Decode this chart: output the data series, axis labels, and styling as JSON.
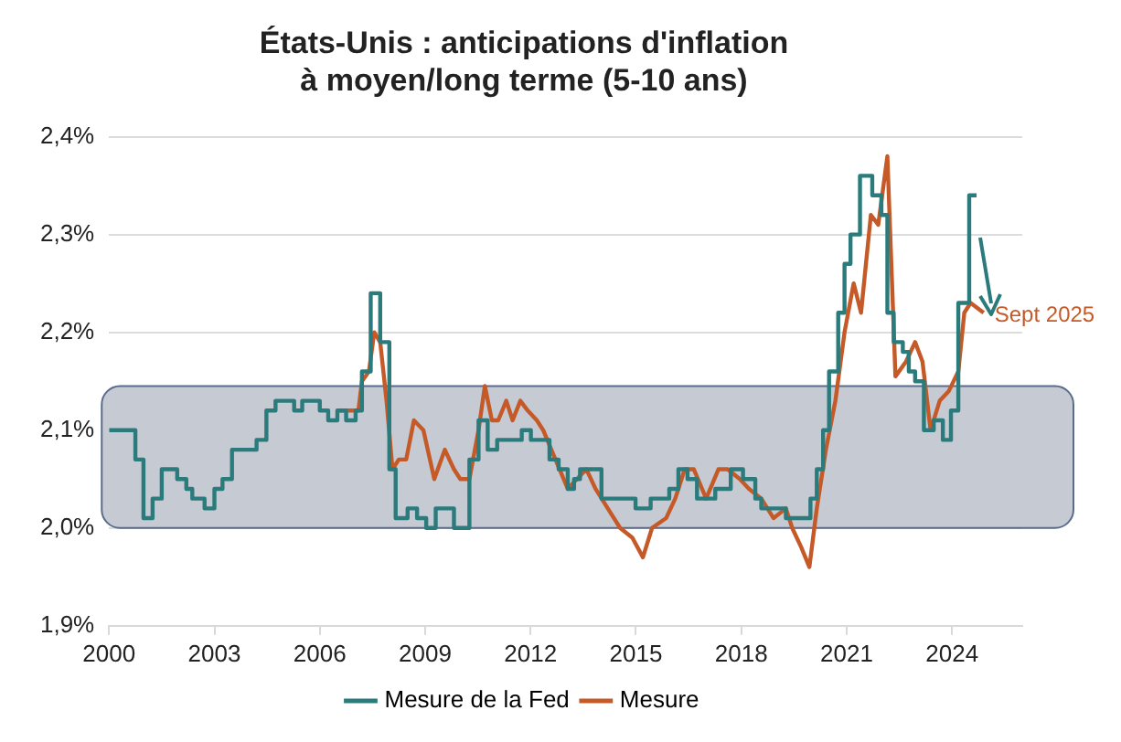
{
  "chart_data": {
    "type": "line",
    "title": "États-Unis : anticipations d'inflation\nà moyen/long terme (5-10 ans)",
    "xlim": [
      2000,
      2026
    ],
    "xticks": [
      2000,
      2003,
      2006,
      2009,
      2012,
      2015,
      2018,
      2021,
      2024
    ],
    "ylim": [
      1.9,
      2.4
    ],
    "yticks": [
      {
        "value": 1.9,
        "label": "1,9%"
      },
      {
        "value": 2.0,
        "label": "2,0%"
      },
      {
        "value": 2.1,
        "label": "2,1%"
      },
      {
        "value": 2.2,
        "label": "2,2%"
      },
      {
        "value": 2.3,
        "label": "2,3%"
      },
      {
        "value": 2.4,
        "label": "2,4%"
      }
    ],
    "grid": "y",
    "legend": "bottom",
    "marker": "none",
    "line_style": "solid",
    "bands": [
      {
        "axis": "y",
        "from": 2.0,
        "to": 2.145,
        "color": "#c5cad3"
      }
    ],
    "annotations": [
      "Sept 2025"
    ],
    "series": [
      {
        "name": "Mesure de la Fed",
        "color": "#2b7b7c",
        "x": [
          2000,
          2000.75,
          2000.75,
          2000.98,
          2000.98,
          2001.24,
          2001.24,
          2001.5,
          2001.5,
          2001.94,
          2001.94,
          2002.2,
          2002.2,
          2002.37,
          2002.37,
          2002.72,
          2002.72,
          2003.0,
          2003.0,
          2003.23,
          2003.23,
          2003.5,
          2003.5,
          2004.2,
          2004.2,
          2004.48,
          2004.48,
          2004.74,
          2004.74,
          2005.27,
          2005.27,
          2005.5,
          2005.5,
          2006.0,
          2006.0,
          2006.24,
          2006.24,
          2006.5,
          2006.5,
          2006.75,
          2006.75,
          2007.02,
          2007.02,
          2007.2,
          2007.2,
          2007.45,
          2007.45,
          2007.72,
          2007.72,
          2007.98,
          2007.98,
          2008.16,
          2008.16,
          2008.5,
          2008.5,
          2008.77,
          2008.77,
          2009.03,
          2009.03,
          2009.3,
          2009.3,
          2009.82,
          2009.82,
          2010.26,
          2010.26,
          2010.52,
          2010.52,
          2010.78,
          2010.78,
          2011.05,
          2011.05,
          2011.75,
          2011.75,
          2012.01,
          2012.01,
          2012.54,
          2012.54,
          2012.8,
          2012.8,
          2013.06,
          2013.06,
          2013.24,
          2013.24,
          2013.41,
          2013.41,
          2014.02,
          2014.02,
          2014.99,
          2014.99,
          2015.42,
          2015.42,
          2015.95,
          2015.95,
          2016.21,
          2016.21,
          2016.47,
          2016.47,
          2016.74,
          2016.74,
          2017.26,
          2017.26,
          2017.7,
          2017.7,
          2018.05,
          2018.05,
          2018.4,
          2018.4,
          2018.57,
          2018.57,
          2019.27,
          2019.27,
          2019.97,
          2019.97,
          2020.15,
          2020.15,
          2020.33,
          2020.33,
          2020.5,
          2020.5,
          2020.76,
          2020.76,
          2020.94,
          2020.94,
          2021.11,
          2021.11,
          2021.38,
          2021.38,
          2021.73,
          2021.73,
          2021.99,
          2021.99,
          2022.16,
          2022.16,
          2022.34,
          2022.34,
          2022.6,
          2022.6,
          2022.77,
          2022.77,
          2022.95,
          2022.95,
          2023.2,
          2023.2,
          2023.48,
          2023.48,
          2023.74,
          2023.74,
          2023.97,
          2023.97,
          2024.18,
          2024.18,
          2024.49,
          2024.49,
          2024.7
        ],
        "values": [
          2.1,
          2.1,
          2.07,
          2.07,
          2.01,
          2.01,
          2.03,
          2.03,
          2.06,
          2.06,
          2.05,
          2.05,
          2.04,
          2.04,
          2.03,
          2.03,
          2.02,
          2.02,
          2.04,
          2.04,
          2.05,
          2.05,
          2.08,
          2.08,
          2.09,
          2.09,
          2.12,
          2.12,
          2.13,
          2.13,
          2.12,
          2.12,
          2.13,
          2.13,
          2.12,
          2.12,
          2.11,
          2.11,
          2.12,
          2.12,
          2.11,
          2.11,
          2.12,
          2.12,
          2.16,
          2.16,
          2.24,
          2.24,
          2.19,
          2.19,
          2.06,
          2.06,
          2.01,
          2.01,
          2.02,
          2.02,
          2.01,
          2.01,
          2.0,
          2.0,
          2.02,
          2.02,
          2.0,
          2.0,
          2.07,
          2.07,
          2.11,
          2.11,
          2.08,
          2.08,
          2.09,
          2.09,
          2.1,
          2.1,
          2.09,
          2.09,
          2.07,
          2.07,
          2.06,
          2.06,
          2.04,
          2.04,
          2.05,
          2.05,
          2.06,
          2.06,
          2.03,
          2.03,
          2.02,
          2.02,
          2.03,
          2.03,
          2.04,
          2.04,
          2.06,
          2.06,
          2.05,
          2.05,
          2.03,
          2.03,
          2.04,
          2.04,
          2.06,
          2.06,
          2.05,
          2.05,
          2.03,
          2.03,
          2.02,
          2.02,
          2.01,
          2.01,
          2.03,
          2.03,
          2.06,
          2.06,
          2.1,
          2.1,
          2.16,
          2.16,
          2.22,
          2.22,
          2.27,
          2.27,
          2.3,
          2.3,
          2.36,
          2.36,
          2.34,
          2.34,
          2.32,
          2.32,
          2.22,
          2.22,
          2.19,
          2.19,
          2.18,
          2.18,
          2.16,
          2.16,
          2.15,
          2.15,
          2.1,
          2.1,
          2.11,
          2.11,
          2.09,
          2.09,
          2.12,
          2.12,
          2.23,
          2.23,
          2.34,
          2.34
        ]
      },
      {
        "name": "Mesure",
        "color": "#c55a28",
        "x": [
          2006.5,
          2007.1,
          2007.2,
          2007.4,
          2007.55,
          2007.72,
          2007.9,
          2008.07,
          2008.25,
          2008.46,
          2008.68,
          2008.95,
          2009.26,
          2009.56,
          2009.82,
          2010.0,
          2010.26,
          2010.52,
          2010.7,
          2010.9,
          2011.08,
          2011.31,
          2011.49,
          2011.71,
          2011.92,
          2012.18,
          2012.36,
          2012.71,
          2013.06,
          2013.32,
          2013.59,
          2013.85,
          2014.2,
          2014.55,
          2014.9,
          2015.2,
          2015.46,
          2015.86,
          2016.12,
          2016.39,
          2016.65,
          2017.0,
          2017.35,
          2017.61,
          2017.96,
          2018.22,
          2018.57,
          2018.92,
          2019.27,
          2019.45,
          2019.71,
          2019.94,
          2020.15,
          2020.41,
          2020.68,
          2020.94,
          2021.2,
          2021.41,
          2021.69,
          2021.9,
          2022.16,
          2022.39,
          2022.69,
          2022.95,
          2023.16,
          2023.39,
          2023.65,
          2023.91,
          2024.18,
          2024.35,
          2024.53,
          2024.9
        ],
        "values": [
          2.12,
          2.12,
          2.15,
          2.16,
          2.2,
          2.19,
          2.13,
          2.06,
          2.07,
          2.07,
          2.11,
          2.1,
          2.05,
          2.08,
          2.06,
          2.05,
          2.05,
          2.1,
          2.145,
          2.11,
          2.11,
          2.13,
          2.11,
          2.13,
          2.12,
          2.11,
          2.1,
          2.07,
          2.04,
          2.05,
          2.06,
          2.04,
          2.02,
          2.0,
          1.99,
          1.97,
          2.0,
          2.01,
          2.03,
          2.06,
          2.06,
          2.03,
          2.06,
          2.06,
          2.05,
          2.04,
          2.03,
          2.01,
          2.02,
          2.0,
          1.98,
          1.96,
          2.02,
          2.08,
          2.13,
          2.2,
          2.25,
          2.22,
          2.32,
          2.31,
          2.38,
          2.155,
          2.17,
          2.19,
          2.17,
          2.1,
          2.13,
          2.14,
          2.16,
          2.22,
          2.23,
          2.22
        ]
      }
    ]
  }
}
